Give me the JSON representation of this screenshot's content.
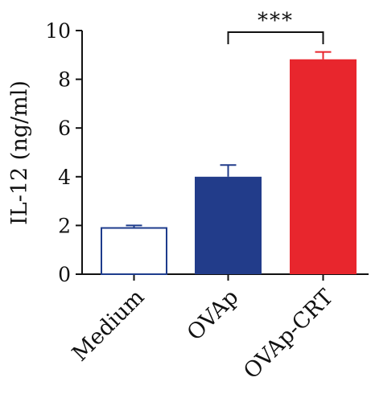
{
  "chart_data": {
    "type": "bar",
    "title": "",
    "xlabel": "",
    "ylabel": "IL-12 (ng/ml)",
    "ylim": [
      0,
      10
    ],
    "yticks": [
      0,
      2,
      4,
      6,
      8,
      10
    ],
    "ytick_labels": [
      "0",
      "2",
      "4",
      "6",
      "8",
      "10"
    ],
    "categories": [
      "Medium",
      "OVAp",
      "OVAp-CRT"
    ],
    "values": [
      1.93,
      4.0,
      8.82
    ],
    "errors": [
      0.07,
      0.48,
      0.3
    ],
    "bar_styles": [
      {
        "fill": "#ffffff",
        "stroke": "#1e3c8c"
      },
      {
        "fill": "#223c8a",
        "stroke": "#223c8a"
      },
      {
        "fill": "#e8262d",
        "stroke": "#e8262d"
      }
    ],
    "significance": [
      {
        "from": 1,
        "to": 2,
        "label": "***"
      }
    ],
    "grid": false,
    "legend": "none"
  }
}
